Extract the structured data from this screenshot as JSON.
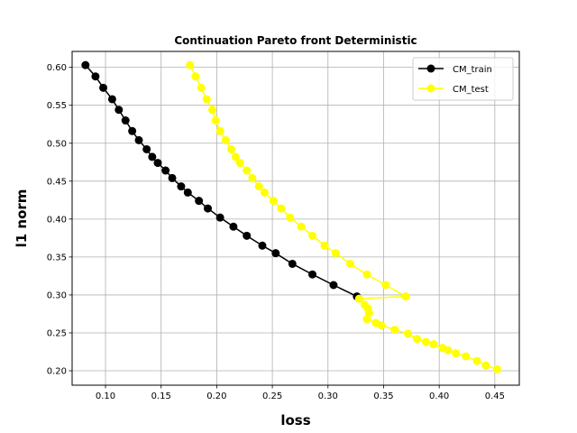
{
  "chart_data": {
    "type": "line",
    "title": "Continuation Pareto front Deterministic",
    "xlabel": "loss",
    "ylabel": "l1 norm",
    "xlim": [
      0.07,
      0.472
    ],
    "ylim": [
      0.181,
      0.621
    ],
    "xticks": [
      0.1,
      0.15,
      0.2,
      0.25,
      0.3,
      0.35,
      0.4,
      0.45
    ],
    "xtick_labels": [
      "0.10",
      "0.15",
      "0.20",
      "0.25",
      "0.30",
      "0.35",
      "0.40",
      "0.45"
    ],
    "yticks": [
      0.2,
      0.25,
      0.3,
      0.35,
      0.4,
      0.45,
      0.5,
      0.55,
      0.6
    ],
    "ytick_labels": [
      "0.20",
      "0.25",
      "0.30",
      "0.35",
      "0.40",
      "0.45",
      "0.50",
      "0.55",
      "0.60"
    ],
    "grid": true,
    "legend_position": "top-right",
    "series": [
      {
        "name": "CM_train",
        "color": "#000000",
        "marker": "circle",
        "points": [
          [
            0.082,
            0.603
          ],
          [
            0.091,
            0.588
          ],
          [
            0.098,
            0.573
          ],
          [
            0.106,
            0.558
          ],
          [
            0.112,
            0.544
          ],
          [
            0.118,
            0.53
          ],
          [
            0.124,
            0.516
          ],
          [
            0.13,
            0.504
          ],
          [
            0.137,
            0.492
          ],
          [
            0.142,
            0.482
          ],
          [
            0.147,
            0.474
          ],
          [
            0.154,
            0.464
          ],
          [
            0.16,
            0.454
          ],
          [
            0.168,
            0.443
          ],
          [
            0.174,
            0.435
          ],
          [
            0.184,
            0.424
          ],
          [
            0.192,
            0.414
          ],
          [
            0.203,
            0.402
          ],
          [
            0.215,
            0.39
          ],
          [
            0.227,
            0.378
          ],
          [
            0.241,
            0.365
          ],
          [
            0.253,
            0.355
          ],
          [
            0.268,
            0.341
          ],
          [
            0.286,
            0.327
          ],
          [
            0.305,
            0.313
          ],
          [
            0.326,
            0.298
          ]
        ]
      },
      {
        "name": "CM_test",
        "color": "#ffff00",
        "marker": "circle",
        "points": [
          [
            0.176,
            0.603
          ],
          [
            0.181,
            0.588
          ],
          [
            0.186,
            0.573
          ],
          [
            0.191,
            0.558
          ],
          [
            0.196,
            0.544
          ],
          [
            0.199,
            0.53
          ],
          [
            0.203,
            0.516
          ],
          [
            0.208,
            0.504
          ],
          [
            0.213,
            0.492
          ],
          [
            0.217,
            0.482
          ],
          [
            0.221,
            0.474
          ],
          [
            0.227,
            0.464
          ],
          [
            0.232,
            0.454
          ],
          [
            0.238,
            0.443
          ],
          [
            0.243,
            0.435
          ],
          [
            0.251,
            0.424
          ],
          [
            0.258,
            0.414
          ],
          [
            0.266,
            0.402
          ],
          [
            0.276,
            0.39
          ],
          [
            0.286,
            0.378
          ],
          [
            0.297,
            0.365
          ],
          [
            0.307,
            0.355
          ],
          [
            0.32,
            0.341
          ],
          [
            0.335,
            0.327
          ],
          [
            0.352,
            0.313
          ],
          [
            0.37,
            0.298
          ],
          [
            0.328,
            0.295
          ],
          [
            0.333,
            0.287
          ],
          [
            0.336,
            0.282
          ],
          [
            0.337,
            0.276
          ],
          [
            0.335,
            0.268
          ],
          [
            0.343,
            0.263
          ],
          [
            0.348,
            0.26
          ],
          [
            0.36,
            0.254
          ],
          [
            0.372,
            0.249
          ],
          [
            0.38,
            0.242
          ],
          [
            0.388,
            0.238
          ],
          [
            0.395,
            0.235
          ],
          [
            0.403,
            0.23
          ],
          [
            0.408,
            0.227
          ],
          [
            0.415,
            0.223
          ],
          [
            0.424,
            0.219
          ],
          [
            0.434,
            0.213
          ],
          [
            0.442,
            0.207
          ],
          [
            0.452,
            0.202
          ]
        ]
      }
    ]
  }
}
